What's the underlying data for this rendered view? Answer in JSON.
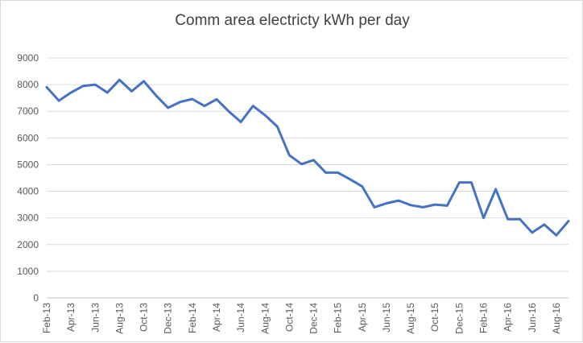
{
  "chart_data": {
    "type": "line",
    "title": "Comm area electricty kWh per day",
    "xlabel": "",
    "ylabel": "",
    "ylim": [
      0,
      9000
    ],
    "yticks": [
      0,
      1000,
      2000,
      3000,
      4000,
      5000,
      6000,
      7000,
      8000,
      9000
    ],
    "grid": true,
    "legend": "none",
    "categories": [
      "Feb-13",
      "Mar-13",
      "Apr-13",
      "May-13",
      "Jun-13",
      "Jul-13",
      "Aug-13",
      "Sep-13",
      "Oct-13",
      "Nov-13",
      "Dec-13",
      "Jan-14",
      "Feb-14",
      "Mar-14",
      "Apr-14",
      "May-14",
      "Jun-14",
      "Jul-14",
      "Aug-14",
      "Sep-14",
      "Oct-14",
      "Nov-14",
      "Dec-14",
      "Jan-15",
      "Feb-15",
      "Mar-15",
      "Apr-15",
      "May-15",
      "Jun-15",
      "Jul-15",
      "Aug-15",
      "Sep-15",
      "Oct-15",
      "Nov-15",
      "Dec-15",
      "Jan-16",
      "Feb-16",
      "Mar-16",
      "Apr-16",
      "May-16",
      "Jun-16",
      "Jul-16",
      "Aug-16",
      "Sep-16"
    ],
    "tick_labels": [
      "Feb-13",
      "Apr-13",
      "Jun-13",
      "Aug-13",
      "Oct-13",
      "Dec-13",
      "Feb-14",
      "Apr-14",
      "Jun-14",
      "Aug-14",
      "Oct-14",
      "Dec-14",
      "Feb-15",
      "Apr-15",
      "Jun-15",
      "Aug-15",
      "Oct-15",
      "Dec-15",
      "Feb-16",
      "Apr-16",
      "Jun-16",
      "Aug-16"
    ],
    "series": [
      {
        "name": "kWh per day",
        "color": "#4472c4",
        "values": [
          7900,
          7400,
          7700,
          7950,
          8000,
          7700,
          8180,
          7750,
          8130,
          7600,
          7130,
          7350,
          7460,
          7200,
          7450,
          7000,
          6600,
          7200,
          6850,
          6430,
          5350,
          5020,
          5170,
          4700,
          4700,
          4450,
          4180,
          3400,
          3550,
          3650,
          3480,
          3400,
          3500,
          3460,
          4330,
          4330,
          3000,
          4080,
          2950,
          2950,
          2450,
          2750,
          2350,
          2880
        ]
      }
    ]
  }
}
